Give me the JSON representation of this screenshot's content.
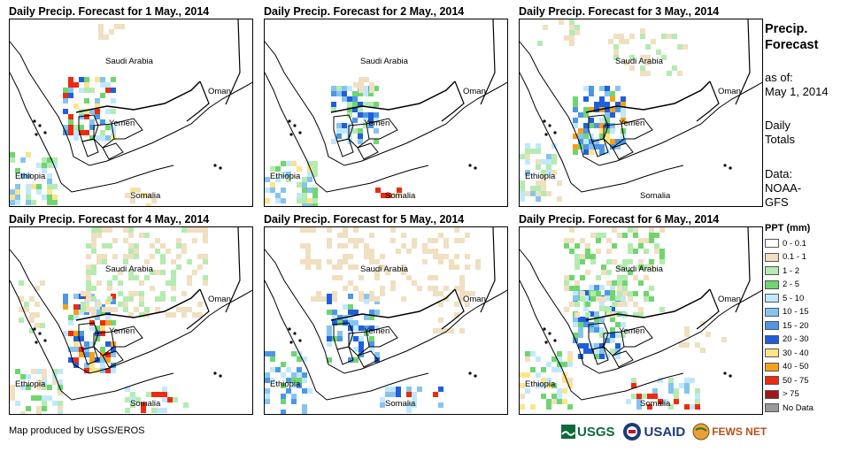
{
  "panels": [
    {
      "title": "Daily Precip. Forecast for 1 May., 2014"
    },
    {
      "title": "Daily Precip. Forecast for 2 May., 2014"
    },
    {
      "title": "Daily Precip. Forecast for 3 May., 2014"
    },
    {
      "title": "Daily Precip. Forecast for 4 May., 2014"
    },
    {
      "title": "Daily Precip. Forecast for 5 May., 2014"
    },
    {
      "title": "Daily Precip. Forecast for 6 May., 2014"
    }
  ],
  "map_labels": {
    "saudi_arabia": "Saudi Arabia",
    "oman": "Oman",
    "yemen": "Yemen",
    "ethiopia": "Ethiopia",
    "somalia": "Somalia"
  },
  "sidebar": {
    "title_line1": "Precip.",
    "title_line2": "Forecast",
    "asof_line1": "as of:",
    "asof_line2": "May 1, 2014",
    "daily_line1": "Daily",
    "daily_line2": "Totals",
    "data_line1": "Data:",
    "data_line2": "NOAA-",
    "data_line3": "GFS"
  },
  "legend": {
    "title": "PPT (mm)",
    "items": [
      {
        "label": "0 - 0.1",
        "color": "#ffffff"
      },
      {
        "label": "0.1 - 1",
        "color": "#f0dfc0"
      },
      {
        "label": "1 - 2",
        "color": "#b4ebb0"
      },
      {
        "label": "2 - 5",
        "color": "#6fd66f"
      },
      {
        "label": "5 - 10",
        "color": "#bfe8ff"
      },
      {
        "label": "10 - 15",
        "color": "#86c4f0"
      },
      {
        "label": "15 - 20",
        "color": "#4d96e6"
      },
      {
        "label": "20 - 30",
        "color": "#1f5fdb"
      },
      {
        "label": "30 - 40",
        "color": "#fbe48a"
      },
      {
        "label": "40 - 50",
        "color": "#f5a01a"
      },
      {
        "label": "50 - 75",
        "color": "#ee2a10"
      },
      {
        "label": "> 75",
        "color": "#a01818"
      },
      {
        "label": "No Data",
        "color": "#9a9a9a"
      }
    ]
  },
  "footer": {
    "credit": "Map produced by USGS/EROS"
  },
  "logos": {
    "usgs": "USGS",
    "usaid": "USAID",
    "fews": "FEWS NET"
  }
}
